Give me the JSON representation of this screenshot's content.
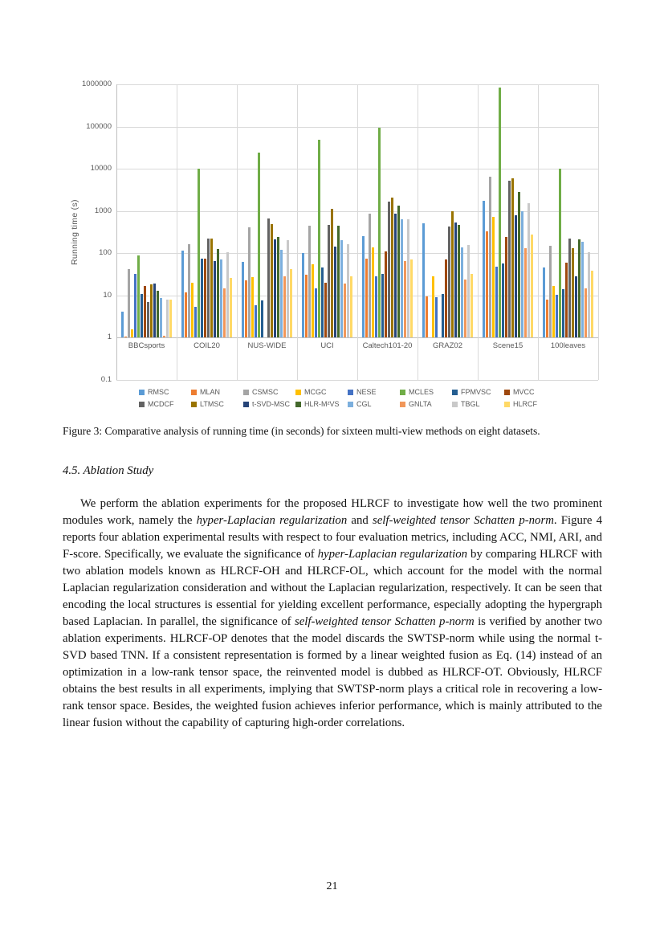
{
  "page": {
    "number": "21"
  },
  "figure": {
    "caption": "Figure 3: Comparative analysis of running time (in seconds) for sixteen multi-view methods on eight datasets."
  },
  "section": {
    "heading": "4.5.  Ablation Study"
  },
  "body_segments": [
    {
      "text": "We perform the ablation experiments for the proposed HLRCF to investigate how well the two prominent modules work, namely the ",
      "italic": false
    },
    {
      "text": "hyper-Laplacian regularization",
      "italic": true
    },
    {
      "text": " and ",
      "italic": false
    },
    {
      "text": "self-weighted tensor Schatten p-norm",
      "italic": true
    },
    {
      "text": ". Figure 4 reports four ablation experimental results with respect to four evaluation metrics, including ACC, NMI, ARI, and F-score. Specifically, we evaluate the significance of ",
      "italic": false
    },
    {
      "text": "hyper-Laplacian regularization",
      "italic": true
    },
    {
      "text": " by comparing HLRCF with two ablation models known as HLRCF-OH and HLRCF-OL, which account for the model with the normal Laplacian regularization consideration and without the Laplacian regularization, respectively. It can be seen that encoding the local structures is essential for yielding excellent performance, especially adopting the hypergraph based Laplacian. In parallel, the significance of ",
      "italic": false
    },
    {
      "text": "self-weighted tensor Schatten p-norm",
      "italic": true
    },
    {
      "text": " is verified by another two ablation experiments. HLRCF-OP denotes that the model discards the SWTSP-norm while using the normal t-SVD based TNN. If a consistent representation is formed by a linear weighted fusion as Eq. (14) instead of an optimization in a low-rank tensor space, the reinvented model is dubbed as HLRCF-OT. Obviously, HLRCF obtains the best results in all experiments, implying that SWTSP-norm plays a critical role in recovering a low-rank tensor space. Besides, the weighted fusion achieves inferior performance, which is mainly attributed to the linear fusion without the capability of capturing high-order correlations.",
      "italic": false
    }
  ],
  "chart_data": {
    "type": "bar",
    "title": "",
    "xlabel": "",
    "ylabel": "Running time (s)",
    "yscale": "log",
    "ylim": [
      0.1,
      1000000
    ],
    "baseline": 1,
    "grid": true,
    "legend_position": "bottom",
    "y_ticks": [
      "1000000",
      "100000",
      "10000",
      "1000",
      "100",
      "10",
      "1",
      "0.1"
    ],
    "categories": [
      "BBCsports",
      "COIL20",
      "NUS-WIDE",
      "UCI",
      "Caltech101-20",
      "GRAZ02",
      "Scene15",
      "100leaves"
    ],
    "series": [
      {
        "name": "RMSC",
        "color": "#5B9BD5",
        "values": [
          4.1,
          115,
          63,
          100,
          255,
          510,
          1750,
          47
        ]
      },
      {
        "name": "MLAN",
        "color": "#ED7D31",
        "values": [
          1.05,
          12,
          23,
          31,
          76,
          9.5,
          330,
          7.9
        ]
      },
      {
        "name": "CSMSC",
        "color": "#A5A5A5",
        "values": [
          42,
          165,
          405,
          440,
          880,
          null,
          6500,
          150
        ]
      },
      {
        "name": "MCGC",
        "color": "#FFC000",
        "values": [
          1.6,
          20,
          27,
          55,
          138,
          29,
          730,
          17
        ]
      },
      {
        "name": "NESE",
        "color": "#4472C4",
        "values": [
          32,
          5.3,
          6,
          15,
          29,
          9.2,
          48,
          10.5
        ]
      },
      {
        "name": "MCLES",
        "color": "#70AD47",
        "values": [
          87,
          10000,
          24000,
          48000,
          93000,
          null,
          850000,
          10000
        ]
      },
      {
        "name": "FPMVSC",
        "color": "#255E91",
        "values": [
          11,
          74,
          7.5,
          47,
          33,
          11,
          57,
          14
        ]
      },
      {
        "name": "MVCC",
        "color": "#9E480E",
        "values": [
          17,
          76,
          null,
          20,
          110,
          70,
          245,
          61
        ]
      },
      {
        "name": "MCDCF",
        "color": "#636363",
        "values": [
          7,
          227,
          680,
          470,
          1700,
          425,
          5300,
          225
        ]
      },
      {
        "name": "LTMSC",
        "color": "#997300",
        "values": [
          18,
          227,
          490,
          1150,
          2100,
          970,
          5900,
          130
        ]
      },
      {
        "name": "t-SVD-MSC",
        "color": "#264478",
        "values": [
          19,
          64,
          210,
          145,
          880,
          545,
          800,
          29
        ]
      },
      {
        "name": "HLR-M²VS",
        "color": "#43682B",
        "values": [
          13,
          128,
          240,
          450,
          1370,
          470,
          2800,
          215
        ]
      },
      {
        "name": "CGL",
        "color": "#7CAFDD",
        "values": [
          8.8,
          70,
          120,
          200,
          630,
          135,
          1000,
          190
        ]
      },
      {
        "name": "GNLTA",
        "color": "#F1975A",
        "values": [
          1.1,
          15,
          28,
          19,
          66,
          24,
          130,
          15
        ]
      },
      {
        "name": "TBGL",
        "color": "#C9C9C9",
        "values": [
          8,
          106,
          200,
          165,
          630,
          160,
          1500,
          105
        ]
      },
      {
        "name": "HLRCF",
        "color": "#FFD966",
        "values": [
          8,
          26,
          43,
          29,
          70,
          32,
          275,
          38
        ]
      }
    ]
  }
}
